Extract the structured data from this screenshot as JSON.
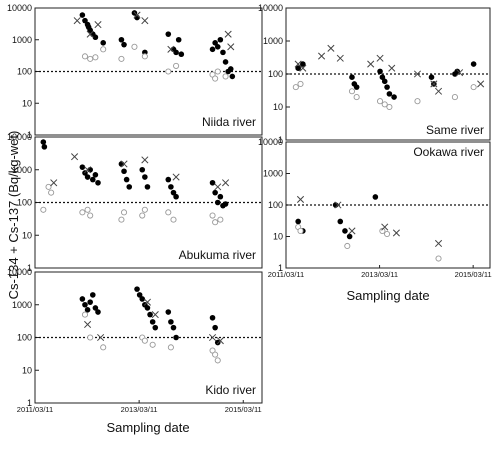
{
  "ylabel": "Cs-134 + Cs-137 (Bq/kg-wet)",
  "xlabel": "Sampling date",
  "chart_data": [
    {
      "type": "scatter",
      "river": "Niida river",
      "ylim": [
        1,
        10000
      ],
      "yscale": "log",
      "yticks": [
        "1",
        "10",
        "100",
        "1000",
        "10000"
      ],
      "xticks": [],
      "reference_line": 100,
      "series": [
        {
          "marker": "filled-circle",
          "points": [
            [
              2012.1,
              6000
            ],
            [
              2012.15,
              4000
            ],
            [
              2012.2,
              3000
            ],
            [
              2012.22,
              2500
            ],
            [
              2012.25,
              2000
            ],
            [
              2012.3,
              1500
            ],
            [
              2012.35,
              1200
            ],
            [
              2012.5,
              800
            ],
            [
              2012.85,
              1000
            ],
            [
              2012.9,
              700
            ],
            [
              2013.1,
              7000
            ],
            [
              2013.15,
              5000
            ],
            [
              2013.3,
              400
            ],
            [
              2013.75,
              1500
            ],
            [
              2013.85,
              500
            ],
            [
              2013.9,
              400
            ],
            [
              2013.95,
              1000
            ],
            [
              2014.0,
              350
            ],
            [
              2014.6,
              500
            ],
            [
              2014.65,
              800
            ],
            [
              2014.7,
              600
            ],
            [
              2014.75,
              1000
            ],
            [
              2014.8,
              400
            ],
            [
              2014.85,
              200
            ],
            [
              2014.9,
              100
            ],
            [
              2014.95,
              120
            ],
            [
              2014.98,
              70
            ]
          ]
        },
        {
          "marker": "open-circle",
          "points": [
            [
              2012.15,
              300
            ],
            [
              2012.25,
              250
            ],
            [
              2012.35,
              280
            ],
            [
              2012.5,
              500
            ],
            [
              2012.85,
              250
            ],
            [
              2013.1,
              600
            ],
            [
              2013.3,
              300
            ],
            [
              2013.75,
              100
            ],
            [
              2013.9,
              150
            ],
            [
              2014.6,
              80
            ],
            [
              2014.65,
              60
            ],
            [
              2014.7,
              100
            ],
            [
              2014.85,
              70
            ]
          ]
        },
        {
          "marker": "cross",
          "points": [
            [
              2012.0,
              4000
            ],
            [
              2012.25,
              1500
            ],
            [
              2012.4,
              3000
            ],
            [
              2013.15,
              6000
            ],
            [
              2013.3,
              4000
            ],
            [
              2013.8,
              500
            ],
            [
              2014.9,
              1500
            ],
            [
              2014.95,
              600
            ]
          ]
        }
      ],
      "label": "Niida river"
    },
    {
      "type": "scatter",
      "river": "Abukuma river",
      "ylim": [
        1,
        10000
      ],
      "yscale": "log",
      "yticks": [
        "1",
        "10",
        "100",
        "1000",
        "10000"
      ],
      "xticks": [],
      "reference_line": 100,
      "series": [
        {
          "marker": "filled-circle",
          "points": [
            [
              2011.35,
              7000
            ],
            [
              2011.37,
              5000
            ],
            [
              2012.1,
              1200
            ],
            [
              2012.15,
              800
            ],
            [
              2012.2,
              600
            ],
            [
              2012.25,
              1000
            ],
            [
              2012.3,
              500
            ],
            [
              2012.35,
              700
            ],
            [
              2012.4,
              400
            ],
            [
              2012.85,
              1500
            ],
            [
              2012.9,
              900
            ],
            [
              2012.95,
              500
            ],
            [
              2013.0,
              300
            ],
            [
              2013.25,
              1000
            ],
            [
              2013.3,
              600
            ],
            [
              2013.35,
              300
            ],
            [
              2013.75,
              500
            ],
            [
              2013.8,
              300
            ],
            [
              2013.85,
              200
            ],
            [
              2013.9,
              150
            ],
            [
              2014.6,
              400
            ],
            [
              2014.65,
              200
            ],
            [
              2014.7,
              100
            ],
            [
              2014.75,
              150
            ],
            [
              2014.8,
              80
            ],
            [
              2014.85,
              90
            ]
          ]
        },
        {
          "marker": "open-circle",
          "points": [
            [
              2011.35,
              60
            ],
            [
              2011.45,
              300
            ],
            [
              2011.5,
              200
            ],
            [
              2012.1,
              50
            ],
            [
              2012.2,
              60
            ],
            [
              2012.25,
              40
            ],
            [
              2012.85,
              30
            ],
            [
              2012.9,
              50
            ],
            [
              2013.25,
              40
            ],
            [
              2013.3,
              60
            ],
            [
              2013.75,
              50
            ],
            [
              2013.85,
              30
            ],
            [
              2014.6,
              40
            ],
            [
              2014.65,
              25
            ],
            [
              2014.75,
              30
            ]
          ]
        },
        {
          "marker": "cross",
          "points": [
            [
              2011.55,
              400
            ],
            [
              2011.95,
              2500
            ],
            [
              2012.2,
              1000
            ],
            [
              2012.9,
              1500
            ],
            [
              2013.3,
              2000
            ],
            [
              2013.9,
              600
            ],
            [
              2014.7,
              300
            ],
            [
              2014.85,
              400
            ]
          ]
        }
      ],
      "label": "Abukuma river"
    },
    {
      "type": "scatter",
      "river": "Kido river",
      "ylim": [
        1,
        10000
      ],
      "yscale": "log",
      "yticks": [
        "1",
        "10",
        "100",
        "1000",
        "10000"
      ],
      "xticks": [
        "2011/03/11",
        "2013/03/11",
        "2015/03/11"
      ],
      "reference_line": 100,
      "series": [
        {
          "marker": "filled-circle",
          "points": [
            [
              2012.1,
              1500
            ],
            [
              2012.15,
              1000
            ],
            [
              2012.2,
              700
            ],
            [
              2012.25,
              1200
            ],
            [
              2012.3,
              2000
            ],
            [
              2012.35,
              800
            ],
            [
              2012.4,
              600
            ],
            [
              2013.15,
              3000
            ],
            [
              2013.2,
              2000
            ],
            [
              2013.25,
              1500
            ],
            [
              2013.3,
              1000
            ],
            [
              2013.35,
              800
            ],
            [
              2013.4,
              500
            ],
            [
              2013.45,
              300
            ],
            [
              2013.5,
              200
            ],
            [
              2013.75,
              600
            ],
            [
              2013.8,
              300
            ],
            [
              2013.85,
              200
            ],
            [
              2013.9,
              100
            ],
            [
              2014.6,
              400
            ],
            [
              2014.65,
              200
            ],
            [
              2014.7,
              70
            ]
          ]
        },
        {
          "marker": "open-circle",
          "points": [
            [
              2012.15,
              500
            ],
            [
              2012.25,
              100
            ],
            [
              2012.5,
              50
            ],
            [
              2013.25,
              100
            ],
            [
              2013.3,
              80
            ],
            [
              2013.45,
              60
            ],
            [
              2013.8,
              50
            ],
            [
              2014.6,
              40
            ],
            [
              2014.65,
              30
            ],
            [
              2014.7,
              20
            ]
          ]
        },
        {
          "marker": "cross",
          "points": [
            [
              2012.2,
              250
            ],
            [
              2012.45,
              100
            ],
            [
              2013.35,
              1200
            ],
            [
              2013.5,
              500
            ],
            [
              2014.6,
              100
            ],
            [
              2014.75,
              80
            ]
          ]
        }
      ],
      "label": "Kido river"
    },
    {
      "type": "scatter",
      "river": "Same river",
      "ylim": [
        1,
        10000
      ],
      "yscale": "log",
      "yticks": [
        "1",
        "10",
        "100",
        "1000",
        "10000"
      ],
      "xticks": [],
      "reference_line": 100,
      "series": [
        {
          "marker": "filled-circle",
          "points": [
            [
              2011.45,
              150
            ],
            [
              2011.55,
              200
            ],
            [
              2012.6,
              80
            ],
            [
              2012.65,
              50
            ],
            [
              2012.7,
              40
            ],
            [
              2013.2,
              120
            ],
            [
              2013.25,
              80
            ],
            [
              2013.3,
              60
            ],
            [
              2013.35,
              40
            ],
            [
              2013.4,
              25
            ],
            [
              2013.5,
              20
            ],
            [
              2014.3,
              80
            ],
            [
              2014.35,
              50
            ],
            [
              2014.8,
              100
            ],
            [
              2014.85,
              120
            ],
            [
              2015.2,
              200
            ]
          ]
        },
        {
          "marker": "open-circle",
          "points": [
            [
              2011.4,
              40
            ],
            [
              2011.5,
              50
            ],
            [
              2012.6,
              30
            ],
            [
              2012.7,
              20
            ],
            [
              2013.2,
              15
            ],
            [
              2013.3,
              12
            ],
            [
              2013.4,
              10
            ],
            [
              2014.0,
              15
            ],
            [
              2014.8,
              20
            ],
            [
              2015.2,
              40
            ]
          ]
        },
        {
          "marker": "cross",
          "points": [
            [
              2011.45,
              200
            ],
            [
              2011.55,
              150
            ],
            [
              2011.95,
              350
            ],
            [
              2012.15,
              600
            ],
            [
              2012.35,
              300
            ],
            [
              2013.0,
              200
            ],
            [
              2013.2,
              300
            ],
            [
              2013.45,
              150
            ],
            [
              2014.0,
              100
            ],
            [
              2014.35,
              50
            ],
            [
              2014.45,
              30
            ],
            [
              2014.9,
              110
            ],
            [
              2015.35,
              50
            ]
          ]
        }
      ],
      "label": "Same river"
    },
    {
      "type": "scatter",
      "river": "Ookawa river",
      "ylim": [
        1,
        10000
      ],
      "yscale": "log",
      "yticks": [
        "1",
        "10",
        "100",
        "1000",
        "10000"
      ],
      "xticks": [
        "2011/03/11",
        "2013/03/11",
        "2015/03/11"
      ],
      "reference_line": 100,
      "series": [
        {
          "marker": "filled-circle",
          "points": [
            [
              2011.45,
              30
            ],
            [
              2011.55,
              15
            ],
            [
              2012.25,
              100
            ],
            [
              2012.35,
              30
            ],
            [
              2012.45,
              15
            ],
            [
              2012.55,
              10
            ],
            [
              2013.1,
              180
            ]
          ]
        },
        {
          "marker": "open-circle",
          "points": [
            [
              2011.45,
              20
            ],
            [
              2011.5,
              15
            ],
            [
              2012.5,
              5
            ],
            [
              2013.25,
              15
            ],
            [
              2013.35,
              12
            ],
            [
              2014.45,
              2
            ]
          ]
        },
        {
          "marker": "cross",
          "points": [
            [
              2011.5,
              150
            ],
            [
              2012.3,
              100
            ],
            [
              2012.6,
              15
            ],
            [
              2013.3,
              20
            ],
            [
              2013.55,
              13
            ],
            [
              2014.45,
              6
            ]
          ]
        }
      ],
      "label": "Ookawa river"
    }
  ]
}
